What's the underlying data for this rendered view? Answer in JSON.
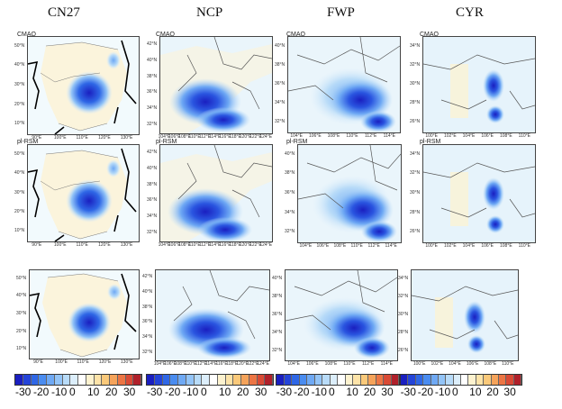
{
  "columns": [
    "CN27",
    "NCP",
    "FWP",
    "CYR"
  ],
  "row_labels": {
    "row1": "CMAQ",
    "row2": "pl-RSM"
  },
  "colorbar": {
    "labels": [
      "-30",
      "-20",
      "-10",
      "0",
      "10",
      "20",
      "30"
    ],
    "colors": [
      "#1a1fc0",
      "#2444d8",
      "#2f67e6",
      "#4a8cf0",
      "#6fa9f4",
      "#93c4f7",
      "#b8dbf8",
      "#dceefb",
      "#ffffff",
      "#fdf2cf",
      "#fde3a8",
      "#fac97a",
      "#f5a35a",
      "#ec7544",
      "#d94a35",
      "#b0202a"
    ]
  },
  "ticks": {
    "CN27": {
      "lon": [
        "90°E",
        "100°E",
        "110°E",
        "120°E",
        "130°E"
      ],
      "lat": [
        "10°N",
        "20°N",
        "30°N",
        "40°N",
        "50°N"
      ]
    },
    "NCP": {
      "lon": [
        "104°E",
        "106°E",
        "108°E",
        "110°E",
        "112°E",
        "114°E",
        "116°E",
        "118°E",
        "120°E",
        "122°E",
        "124°E"
      ],
      "lat": [
        "32°N",
        "34°N",
        "36°N",
        "38°N",
        "40°N",
        "42°N"
      ]
    },
    "FWP": {
      "lon": [
        "104°E",
        "106°E",
        "108°E",
        "110°E",
        "112°E",
        "114°E"
      ],
      "lat": [
        "32°N",
        "34°N",
        "36°N",
        "38°N",
        "40°N"
      ]
    },
    "CYR": {
      "lon": [
        "100°E",
        "102°E",
        "104°E",
        "106°E",
        "108°E",
        "110°E"
      ],
      "lat": [
        "26°N",
        "28°N",
        "30°N",
        "32°N",
        "34°N"
      ]
    }
  }
}
